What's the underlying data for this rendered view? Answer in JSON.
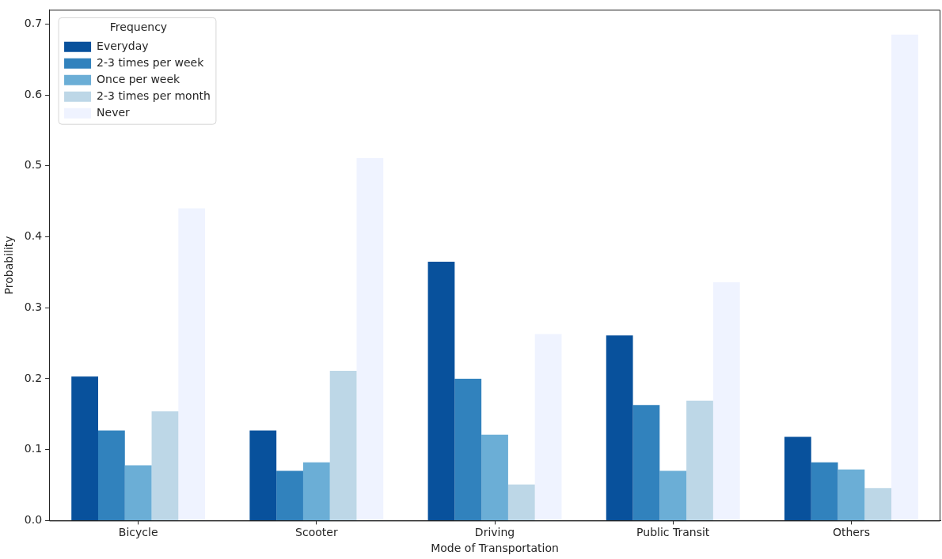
{
  "chart_data": {
    "type": "bar",
    "xlabel": "Mode of Transportation",
    "ylabel": "Probability",
    "legend_title": "Frequency",
    "legend": "top left",
    "grid": false,
    "categories": [
      "Bicycle",
      "Scooter",
      "Driving",
      "Public Transit",
      "Others"
    ],
    "series": [
      {
        "name": "Everyday",
        "color": "#08519c",
        "values": [
          0.203,
          0.127,
          0.365,
          0.261,
          0.118
        ]
      },
      {
        "name": "2-3 times per week",
        "color": "#3182bd",
        "values": [
          0.127,
          0.07,
          0.2,
          0.163,
          0.082
        ]
      },
      {
        "name": "Once per week",
        "color": "#6baed6",
        "values": [
          0.078,
          0.082,
          0.121,
          0.07,
          0.072
        ]
      },
      {
        "name": "2-3 times per month",
        "color": "#bdd7e7",
        "values": [
          0.154,
          0.211,
          0.051,
          0.169,
          0.046
        ]
      },
      {
        "name": "Never",
        "color": "#eff3ff",
        "values": [
          0.44,
          0.511,
          0.263,
          0.336,
          0.685
        ]
      }
    ],
    "ylim": [
      0,
      0.72
    ],
    "yticks": [
      {
        "value": 0,
        "label": "0.0"
      },
      0.1,
      0.2,
      0.3,
      0.4,
      0.5,
      0.6,
      0.7
    ]
  }
}
